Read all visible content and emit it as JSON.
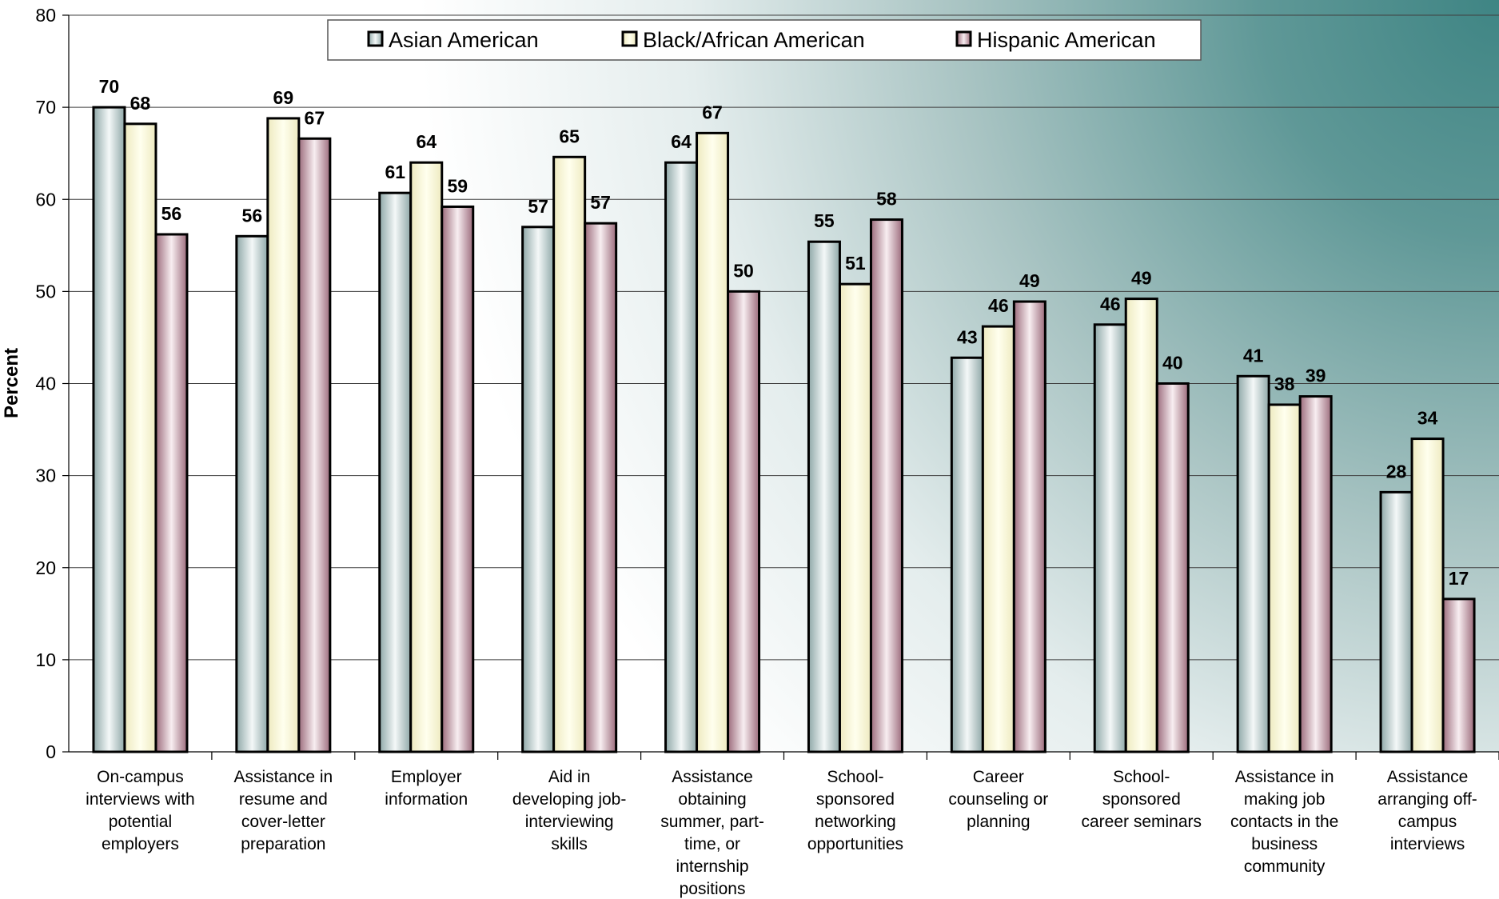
{
  "chart_data": {
    "type": "bar",
    "title": "",
    "xlabel": "",
    "ylabel": "Percent",
    "ylim": [
      0,
      80
    ],
    "yticks": [
      0,
      10,
      20,
      30,
      40,
      50,
      60,
      70,
      80
    ],
    "grid": true,
    "legend_position": "top",
    "categories": [
      [
        "On-campus",
        "interviews with",
        "potential",
        "employers"
      ],
      [
        "Assistance in",
        "resume and",
        "cover-letter",
        "preparation"
      ],
      [
        "Employer",
        "information"
      ],
      [
        "Aid in",
        "developing job-",
        "interviewing",
        "skills"
      ],
      [
        "Assistance",
        "obtaining",
        "summer, part-",
        "time, or",
        "internship",
        "positions"
      ],
      [
        "School-",
        "sponsored",
        "networking",
        "opportunities"
      ],
      [
        "Career",
        "counseling or",
        "planning"
      ],
      [
        "School-",
        "sponsored",
        "career seminars"
      ],
      [
        "Assistance in",
        "making job",
        "contacts in the",
        "business",
        "community"
      ],
      [
        "Assistance",
        "arranging off-",
        "campus",
        "interviews"
      ]
    ],
    "series": [
      {
        "name": "Asian American",
        "values": [
          70,
          56,
          61,
          57,
          64,
          55,
          43,
          46,
          41,
          28
        ],
        "plotted": [
          70,
          56,
          60.7,
          57,
          64,
          55.4,
          42.8,
          46.4,
          40.8,
          28.2
        ]
      },
      {
        "name": "Black/African American",
        "values": [
          68,
          69,
          64,
          65,
          67,
          51,
          46,
          49,
          38,
          34
        ],
        "plotted": [
          68.2,
          68.8,
          64,
          64.6,
          67.2,
          50.8,
          46.2,
          49.2,
          37.7,
          34
        ]
      },
      {
        "name": "Hispanic American",
        "values": [
          56,
          67,
          59,
          57,
          50,
          58,
          49,
          40,
          39,
          17
        ],
        "plotted": [
          56.2,
          66.6,
          59.2,
          57.4,
          50,
          57.8,
          48.9,
          40,
          38.6,
          16.6
        ]
      }
    ],
    "colors": {
      "asian_fill_dark": "#8fa8a8",
      "asian_fill_light": "#f4f8f8",
      "black_fill_dark": "#eeeac0",
      "black_fill_light": "#ffffee",
      "hispanic_fill_dark": "#9c6c7c",
      "hispanic_fill_light": "#f8eef1",
      "bg_light": "#ffffff",
      "bg_teal": "#3f8584"
    }
  }
}
